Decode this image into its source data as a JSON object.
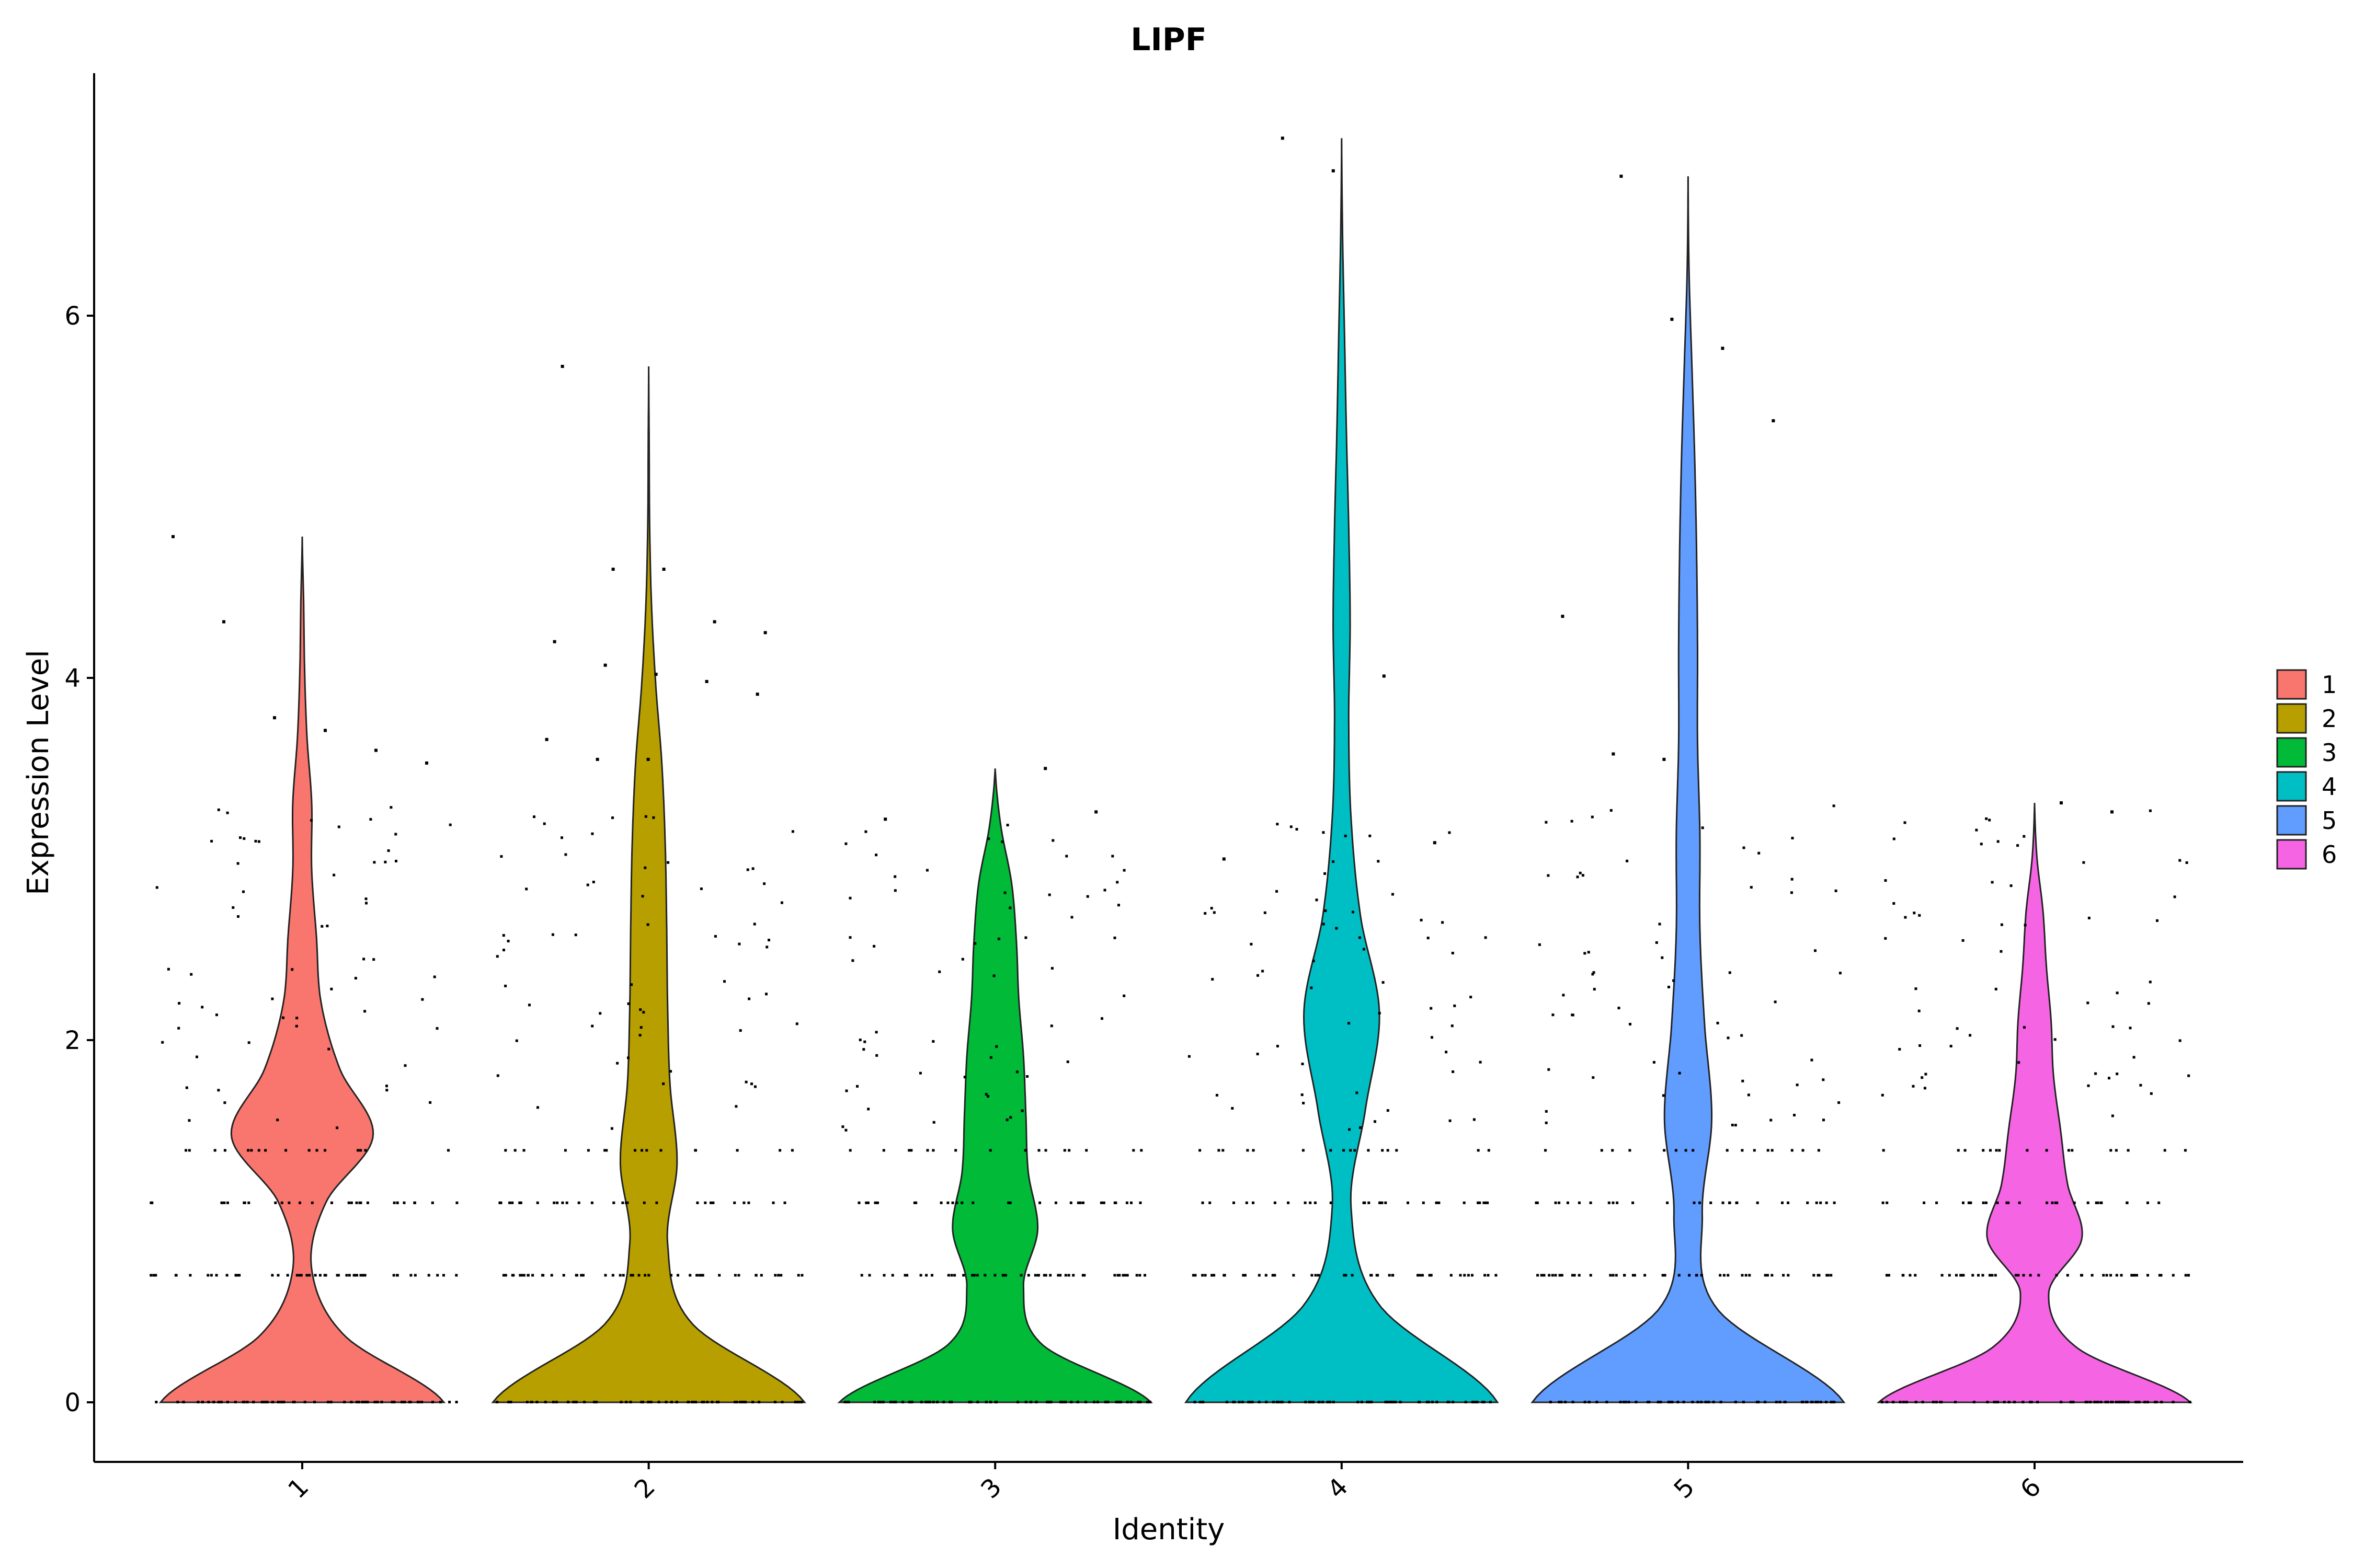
{
  "chart_data": {
    "type": "violin",
    "title": "LIPF",
    "xlabel": "Identity",
    "ylabel": "Expression Level",
    "ylim": [
      -0.35,
      7.35
    ],
    "yticks": [
      0,
      2,
      4,
      6
    ],
    "grid": false,
    "legend_position": "right",
    "categories": [
      "1",
      "2",
      "3",
      "4",
      "5",
      "6"
    ],
    "series": [
      {
        "name": "1",
        "color": "#F8766D",
        "max": 4.78,
        "neck": 0.35,
        "rungs": [
          0.7,
          1.1,
          1.39
        ],
        "widths": [
          0.3,
          0.09,
          0.02,
          0.05,
          0.15,
          0.08,
          0.04,
          0.03,
          0.02,
          0.02,
          0.01,
          0.005,
          0.003,
          0.0
        ]
      },
      {
        "name": "2",
        "color": "#B79F00",
        "max": 5.72,
        "neck": 0.45,
        "rungs": [
          0.7,
          1.1,
          1.39
        ],
        "widths": [
          0.33,
          0.09,
          0.04,
          0.06,
          0.045,
          0.04,
          0.038,
          0.035,
          0.028,
          0.015,
          0.006,
          0.002,
          0.001,
          0.0
        ]
      },
      {
        "name": "3",
        "color": "#00BA38",
        "max": 3.5,
        "neck": 0.45,
        "rungs": [
          0.7,
          1.1,
          1.39
        ],
        "widths": [
          0.33,
          0.1,
          0.06,
          0.09,
          0.07,
          0.065,
          0.06,
          0.05,
          0.045,
          0.035,
          0.012,
          0.0
        ]
      },
      {
        "name": "4",
        "color": "#00BFC4",
        "max": 6.98,
        "neck": 0.35,
        "rungs": [
          0.7,
          1.1,
          1.39
        ],
        "widths": [
          0.33,
          0.08,
          0.02,
          0.05,
          0.08,
          0.04,
          0.02,
          0.015,
          0.018,
          0.015,
          0.01,
          0.006,
          0.002,
          0.0
        ]
      },
      {
        "name": "5",
        "color": "#619CFF",
        "max": 6.77,
        "neck": 0.3,
        "rungs": [
          0.7,
          1.1,
          1.39
        ],
        "widths": [
          0.33,
          0.06,
          0.03,
          0.05,
          0.035,
          0.025,
          0.025,
          0.02,
          0.02,
          0.018,
          0.014,
          0.008,
          0.002,
          0.0
        ]
      },
      {
        "name": "6",
        "color": "#F564E3",
        "max": 3.31,
        "neck": 0.35,
        "rungs": [
          0.7,
          1.1,
          1.39
        ],
        "widths": [
          0.33,
          0.09,
          0.03,
          0.1,
          0.07,
          0.055,
          0.04,
          0.035,
          0.025,
          0.018,
          0.005,
          0.0
        ]
      }
    ],
    "outliers": [
      [
        "1",
        4.78
      ],
      [
        "1",
        4.31
      ],
      [
        "1",
        3.78
      ],
      [
        "1",
        3.71
      ],
      [
        "1",
        3.6
      ],
      [
        "1",
        3.53
      ],
      [
        "2",
        5.72
      ],
      [
        "2",
        4.6
      ],
      [
        "2",
        4.6
      ],
      [
        "2",
        4.31
      ],
      [
        "2",
        4.25
      ],
      [
        "2",
        4.2
      ],
      [
        "2",
        4.07
      ],
      [
        "2",
        4.02
      ],
      [
        "2",
        3.98
      ],
      [
        "2",
        3.91
      ],
      [
        "2",
        3.66
      ],
      [
        "2",
        3.55
      ],
      [
        "2",
        3.55
      ],
      [
        "3",
        3.5
      ],
      [
        "3",
        3.26
      ],
      [
        "3",
        3.22
      ],
      [
        "4",
        6.98
      ],
      [
        "4",
        6.8
      ],
      [
        "4",
        4.01
      ],
      [
        "4",
        3.09
      ],
      [
        "4",
        3.0
      ],
      [
        "5",
        6.77
      ],
      [
        "5",
        5.98
      ],
      [
        "5",
        5.82
      ],
      [
        "5",
        5.42
      ],
      [
        "5",
        4.34
      ],
      [
        "5",
        3.58
      ],
      [
        "5",
        3.55
      ],
      [
        "6",
        3.31
      ],
      [
        "6",
        3.26
      ]
    ]
  }
}
